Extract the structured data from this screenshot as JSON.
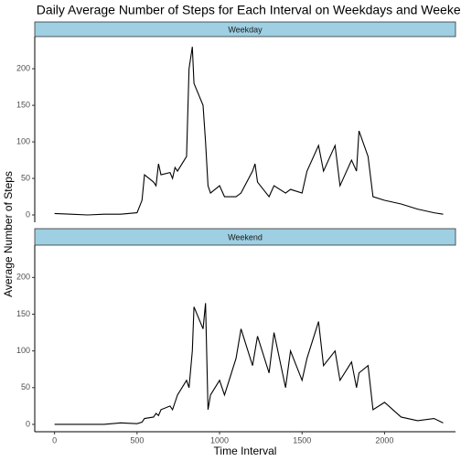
{
  "chart_data": {
    "type": "line",
    "title": "Daily Average Number of Steps for Each Interval on Weekdays and Weekends",
    "xlabel": "Time Interval",
    "ylabel": "Average Number of Steps",
    "facets": true,
    "strip_color": "#9ecfe2",
    "x": [
      0,
      100,
      200,
      300,
      400,
      500,
      530,
      545,
      600,
      615,
      630,
      645,
      700,
      715,
      730,
      745,
      800,
      815,
      835,
      845,
      900,
      915,
      930,
      945,
      1000,
      1030,
      1100,
      1130,
      1200,
      1215,
      1230,
      1300,
      1330,
      1400,
      1430,
      1500,
      1530,
      1600,
      1630,
      1700,
      1730,
      1800,
      1830,
      1845,
      1900,
      1930,
      2000,
      2100,
      2200,
      2300,
      2355
    ],
    "series": [
      {
        "name": "Weekday",
        "color": "#000000",
        "values": [
          2,
          1,
          0,
          1,
          1,
          3,
          20,
          55,
          45,
          40,
          70,
          55,
          58,
          50,
          65,
          60,
          80,
          200,
          230,
          180,
          150,
          100,
          40,
          30,
          40,
          25,
          25,
          30,
          60,
          70,
          45,
          25,
          40,
          30,
          35,
          30,
          60,
          95,
          60,
          95,
          40,
          75,
          60,
          115,
          80,
          25,
          20,
          15,
          8,
          3,
          1
        ]
      },
      {
        "name": "Weekend",
        "color": "#000000",
        "values": [
          0,
          0,
          0,
          0,
          2,
          1,
          3,
          8,
          10,
          15,
          12,
          20,
          25,
          20,
          30,
          40,
          60,
          50,
          100,
          160,
          130,
          165,
          20,
          40,
          60,
          40,
          90,
          130,
          80,
          100,
          120,
          70,
          125,
          50,
          100,
          60,
          90,
          140,
          80,
          100,
          60,
          85,
          50,
          70,
          80,
          20,
          30,
          10,
          5,
          8,
          2
        ]
      }
    ],
    "xlim": [
      -120,
      2430
    ],
    "xticks": [
      0,
      500,
      1000,
      1500,
      2000
    ],
    "ylim": [
      -10,
      244
    ],
    "yticks": [
      0,
      50,
      100,
      150,
      200
    ]
  }
}
